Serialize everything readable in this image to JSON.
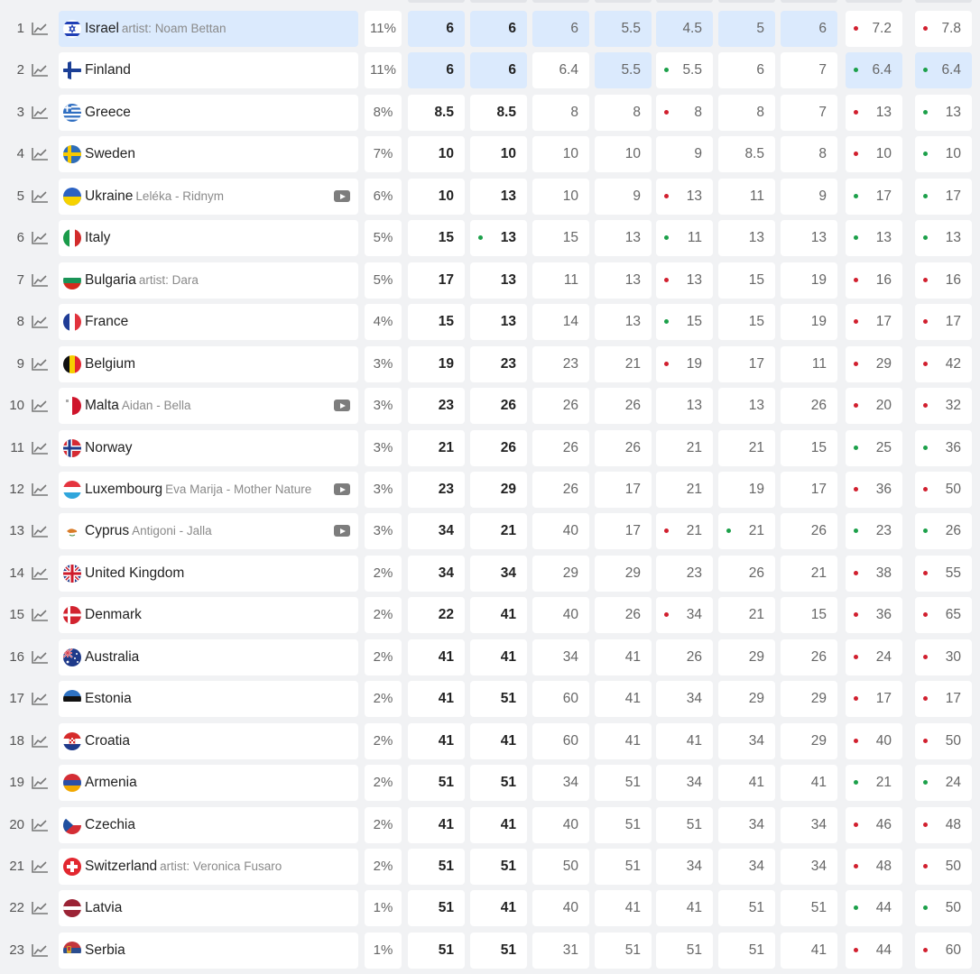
{
  "rows": [
    {
      "rank": "1",
      "country": "Israel",
      "sub_label": "artist:",
      "sub_value": "Noam Bettan",
      "video": false,
      "highlight": true,
      "flag": "il",
      "percent": "11%",
      "odds": [
        {
          "v": "6",
          "hl": true
        },
        {
          "v": "6",
          "hl": true
        },
        {
          "v": "6",
          "hl": true
        },
        {
          "v": "5.5",
          "hl": true
        },
        {
          "v": "4.5",
          "hl": true
        },
        {
          "v": "5",
          "hl": true
        },
        {
          "v": "6",
          "hl": true
        },
        {
          "v": "7.2",
          "dot": "red"
        },
        {
          "v": "7.8",
          "dot": "red"
        }
      ]
    },
    {
      "rank": "2",
      "country": "Finland",
      "sub_label": "",
      "sub_value": "",
      "video": false,
      "highlight": false,
      "flag": "fi",
      "percent": "11%",
      "odds": [
        {
          "v": "6",
          "hl": true
        },
        {
          "v": "6",
          "hl": true
        },
        {
          "v": "6.4"
        },
        {
          "v": "5.5",
          "hl": true
        },
        {
          "v": "5.5",
          "dot": "green"
        },
        {
          "v": "6"
        },
        {
          "v": "7"
        },
        {
          "v": "6.4",
          "hl": true,
          "dot": "green"
        },
        {
          "v": "6.4",
          "hl": true,
          "dot": "green"
        }
      ]
    },
    {
      "rank": "3",
      "country": "Greece",
      "sub_label": "",
      "sub_value": "",
      "video": false,
      "highlight": false,
      "flag": "gr",
      "percent": "8%",
      "odds": [
        {
          "v": "8.5"
        },
        {
          "v": "8.5"
        },
        {
          "v": "8"
        },
        {
          "v": "8"
        },
        {
          "v": "8",
          "dot": "red"
        },
        {
          "v": "8"
        },
        {
          "v": "7"
        },
        {
          "v": "13",
          "dot": "red"
        },
        {
          "v": "13",
          "dot": "green"
        }
      ]
    },
    {
      "rank": "4",
      "country": "Sweden",
      "sub_label": "",
      "sub_value": "",
      "video": false,
      "highlight": false,
      "flag": "se",
      "percent": "7%",
      "odds": [
        {
          "v": "10"
        },
        {
          "v": "10"
        },
        {
          "v": "10"
        },
        {
          "v": "10"
        },
        {
          "v": "9"
        },
        {
          "v": "8.5"
        },
        {
          "v": "8"
        },
        {
          "v": "10",
          "dot": "red"
        },
        {
          "v": "10",
          "dot": "green"
        }
      ]
    },
    {
      "rank": "5",
      "country": "Ukraine",
      "sub_label": "Leléka",
      "sub_value": "Ridnym",
      "video": true,
      "highlight": false,
      "flag": "ua",
      "percent": "6%",
      "odds": [
        {
          "v": "10"
        },
        {
          "v": "13"
        },
        {
          "v": "10"
        },
        {
          "v": "9"
        },
        {
          "v": "13",
          "dot": "red"
        },
        {
          "v": "11"
        },
        {
          "v": "9"
        },
        {
          "v": "17",
          "dot": "green"
        },
        {
          "v": "17",
          "dot": "green"
        }
      ]
    },
    {
      "rank": "6",
      "country": "Italy",
      "sub_label": "",
      "sub_value": "",
      "video": false,
      "highlight": false,
      "flag": "it",
      "percent": "5%",
      "odds": [
        {
          "v": "15"
        },
        {
          "v": "13",
          "dot": "green"
        },
        {
          "v": "15"
        },
        {
          "v": "13"
        },
        {
          "v": "11",
          "dot": "green"
        },
        {
          "v": "13"
        },
        {
          "v": "13"
        },
        {
          "v": "13",
          "dot": "green"
        },
        {
          "v": "13",
          "dot": "green"
        }
      ]
    },
    {
      "rank": "7",
      "country": "Bulgaria",
      "sub_label": "artist:",
      "sub_value": "Dara",
      "video": false,
      "highlight": false,
      "flag": "bg",
      "percent": "5%",
      "odds": [
        {
          "v": "17"
        },
        {
          "v": "13"
        },
        {
          "v": "11"
        },
        {
          "v": "13"
        },
        {
          "v": "13",
          "dot": "red"
        },
        {
          "v": "15"
        },
        {
          "v": "19"
        },
        {
          "v": "16",
          "dot": "red"
        },
        {
          "v": "16",
          "dot": "red"
        }
      ]
    },
    {
      "rank": "8",
      "country": "France",
      "sub_label": "",
      "sub_value": "",
      "video": false,
      "highlight": false,
      "flag": "fr",
      "percent": "4%",
      "odds": [
        {
          "v": "15"
        },
        {
          "v": "13"
        },
        {
          "v": "14"
        },
        {
          "v": "13"
        },
        {
          "v": "15",
          "dot": "green"
        },
        {
          "v": "15"
        },
        {
          "v": "19"
        },
        {
          "v": "17",
          "dot": "red"
        },
        {
          "v": "17",
          "dot": "red"
        }
      ]
    },
    {
      "rank": "9",
      "country": "Belgium",
      "sub_label": "",
      "sub_value": "",
      "video": false,
      "highlight": false,
      "flag": "be",
      "percent": "3%",
      "odds": [
        {
          "v": "19"
        },
        {
          "v": "23"
        },
        {
          "v": "23"
        },
        {
          "v": "21"
        },
        {
          "v": "19",
          "dot": "red"
        },
        {
          "v": "17"
        },
        {
          "v": "11"
        },
        {
          "v": "29",
          "dot": "red"
        },
        {
          "v": "42",
          "dot": "red"
        }
      ]
    },
    {
      "rank": "10",
      "country": "Malta",
      "sub_label": "Aidan",
      "sub_value": "Bella",
      "video": true,
      "highlight": false,
      "flag": "mt",
      "percent": "3%",
      "odds": [
        {
          "v": "23"
        },
        {
          "v": "26"
        },
        {
          "v": "26"
        },
        {
          "v": "26"
        },
        {
          "v": "13"
        },
        {
          "v": "13"
        },
        {
          "v": "26"
        },
        {
          "v": "20",
          "dot": "red"
        },
        {
          "v": "32",
          "dot": "red"
        }
      ]
    },
    {
      "rank": "11",
      "country": "Norway",
      "sub_label": "",
      "sub_value": "",
      "video": false,
      "highlight": false,
      "flag": "no",
      "percent": "3%",
      "odds": [
        {
          "v": "21"
        },
        {
          "v": "26"
        },
        {
          "v": "26"
        },
        {
          "v": "26"
        },
        {
          "v": "21"
        },
        {
          "v": "21"
        },
        {
          "v": "15"
        },
        {
          "v": "25",
          "dot": "green"
        },
        {
          "v": "36",
          "dot": "green"
        }
      ]
    },
    {
      "rank": "12",
      "country": "Luxembourg",
      "sub_label": "Eva Marija",
      "sub_value": "Mother Nature",
      "video": true,
      "highlight": false,
      "flag": "lu",
      "percent": "3%",
      "odds": [
        {
          "v": "23"
        },
        {
          "v": "29"
        },
        {
          "v": "26"
        },
        {
          "v": "17"
        },
        {
          "v": "21"
        },
        {
          "v": "19"
        },
        {
          "v": "17"
        },
        {
          "v": "36",
          "dot": "red"
        },
        {
          "v": "50",
          "dot": "red"
        }
      ]
    },
    {
      "rank": "13",
      "country": "Cyprus",
      "sub_label": "Antigoni",
      "sub_value": "Jalla",
      "video": true,
      "highlight": false,
      "flag": "cy",
      "percent": "3%",
      "odds": [
        {
          "v": "34"
        },
        {
          "v": "21"
        },
        {
          "v": "40"
        },
        {
          "v": "17"
        },
        {
          "v": "21",
          "dot": "red"
        },
        {
          "v": "21",
          "dot": "green"
        },
        {
          "v": "26"
        },
        {
          "v": "23",
          "dot": "green"
        },
        {
          "v": "26",
          "dot": "green"
        }
      ]
    },
    {
      "rank": "14",
      "country": "United Kingdom",
      "sub_label": "",
      "sub_value": "",
      "video": false,
      "highlight": false,
      "flag": "gb",
      "percent": "2%",
      "odds": [
        {
          "v": "34"
        },
        {
          "v": "34"
        },
        {
          "v": "29"
        },
        {
          "v": "29"
        },
        {
          "v": "23"
        },
        {
          "v": "26"
        },
        {
          "v": "21"
        },
        {
          "v": "38",
          "dot": "red"
        },
        {
          "v": "55",
          "dot": "red"
        }
      ]
    },
    {
      "rank": "15",
      "country": "Denmark",
      "sub_label": "",
      "sub_value": "",
      "video": false,
      "highlight": false,
      "flag": "dk",
      "percent": "2%",
      "odds": [
        {
          "v": "22"
        },
        {
          "v": "41"
        },
        {
          "v": "40"
        },
        {
          "v": "26"
        },
        {
          "v": "34",
          "dot": "red"
        },
        {
          "v": "21"
        },
        {
          "v": "15"
        },
        {
          "v": "36",
          "dot": "red"
        },
        {
          "v": "65",
          "dot": "red"
        }
      ]
    },
    {
      "rank": "16",
      "country": "Australia",
      "sub_label": "",
      "sub_value": "",
      "video": false,
      "highlight": false,
      "flag": "au",
      "percent": "2%",
      "odds": [
        {
          "v": "41"
        },
        {
          "v": "41"
        },
        {
          "v": "34"
        },
        {
          "v": "41"
        },
        {
          "v": "26"
        },
        {
          "v": "29"
        },
        {
          "v": "26"
        },
        {
          "v": "24",
          "dot": "red"
        },
        {
          "v": "30",
          "dot": "red"
        }
      ]
    },
    {
      "rank": "17",
      "country": "Estonia",
      "sub_label": "",
      "sub_value": "",
      "video": false,
      "highlight": false,
      "flag": "ee",
      "percent": "2%",
      "odds": [
        {
          "v": "41"
        },
        {
          "v": "51"
        },
        {
          "v": "60"
        },
        {
          "v": "41"
        },
        {
          "v": "34"
        },
        {
          "v": "29"
        },
        {
          "v": "29"
        },
        {
          "v": "17",
          "dot": "red"
        },
        {
          "v": "17",
          "dot": "red"
        }
      ]
    },
    {
      "rank": "18",
      "country": "Croatia",
      "sub_label": "",
      "sub_value": "",
      "video": false,
      "highlight": false,
      "flag": "hr",
      "percent": "2%",
      "odds": [
        {
          "v": "41"
        },
        {
          "v": "41"
        },
        {
          "v": "60"
        },
        {
          "v": "41"
        },
        {
          "v": "41"
        },
        {
          "v": "34"
        },
        {
          "v": "29"
        },
        {
          "v": "40",
          "dot": "red"
        },
        {
          "v": "50",
          "dot": "red"
        }
      ]
    },
    {
      "rank": "19",
      "country": "Armenia",
      "sub_label": "",
      "sub_value": "",
      "video": false,
      "highlight": false,
      "flag": "am",
      "percent": "2%",
      "odds": [
        {
          "v": "51"
        },
        {
          "v": "51"
        },
        {
          "v": "34"
        },
        {
          "v": "51"
        },
        {
          "v": "34"
        },
        {
          "v": "41"
        },
        {
          "v": "41"
        },
        {
          "v": "21",
          "dot": "green"
        },
        {
          "v": "24",
          "dot": "green"
        }
      ]
    },
    {
      "rank": "20",
      "country": "Czechia",
      "sub_label": "",
      "sub_value": "",
      "video": false,
      "highlight": false,
      "flag": "cz",
      "percent": "2%",
      "odds": [
        {
          "v": "41"
        },
        {
          "v": "41"
        },
        {
          "v": "40"
        },
        {
          "v": "51"
        },
        {
          "v": "51"
        },
        {
          "v": "34"
        },
        {
          "v": "34"
        },
        {
          "v": "46",
          "dot": "red"
        },
        {
          "v": "48",
          "dot": "red"
        }
      ]
    },
    {
      "rank": "21",
      "country": "Switzerland",
      "sub_label": "artist:",
      "sub_value": "Veronica Fusaro",
      "video": false,
      "highlight": false,
      "flag": "ch",
      "percent": "2%",
      "odds": [
        {
          "v": "51"
        },
        {
          "v": "51"
        },
        {
          "v": "50"
        },
        {
          "v": "51"
        },
        {
          "v": "34"
        },
        {
          "v": "34"
        },
        {
          "v": "34"
        },
        {
          "v": "48",
          "dot": "red"
        },
        {
          "v": "50",
          "dot": "red"
        }
      ]
    },
    {
      "rank": "22",
      "country": "Latvia",
      "sub_label": "",
      "sub_value": "",
      "video": false,
      "highlight": false,
      "flag": "lv",
      "percent": "1%",
      "odds": [
        {
          "v": "51"
        },
        {
          "v": "41"
        },
        {
          "v": "40"
        },
        {
          "v": "41"
        },
        {
          "v": "41"
        },
        {
          "v": "51"
        },
        {
          "v": "51"
        },
        {
          "v": "44",
          "dot": "green"
        },
        {
          "v": "50",
          "dot": "green"
        }
      ]
    },
    {
      "rank": "23",
      "country": "Serbia",
      "sub_label": "",
      "sub_value": "",
      "video": false,
      "highlight": false,
      "flag": "rs",
      "percent": "1%",
      "odds": [
        {
          "v": "51"
        },
        {
          "v": "51"
        },
        {
          "v": "31"
        },
        {
          "v": "51"
        },
        {
          "v": "51"
        },
        {
          "v": "51"
        },
        {
          "v": "41"
        },
        {
          "v": "44",
          "dot": "red"
        },
        {
          "v": "60",
          "dot": "red"
        }
      ]
    }
  ],
  "colors": {
    "highlight": "#dbeafd",
    "red_dot": "#d11f2e",
    "green_dot": "#1ca04a",
    "background": "#f1f2f4"
  },
  "icons": {
    "trend": "trend-chart-icon",
    "video": "video-icon",
    "flag": "flag-icon"
  }
}
